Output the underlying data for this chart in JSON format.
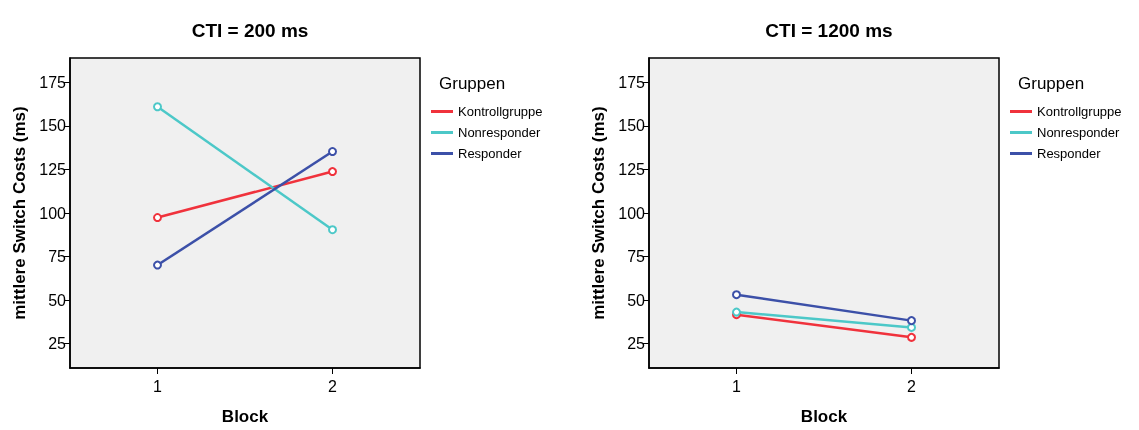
{
  "chart_data": [
    {
      "type": "line",
      "title": "CTI = 200 ms",
      "xlabel": "Block",
      "ylabel": "mittlere Switch Costs (ms)",
      "legend_title": "Gruppen",
      "legend": "right",
      "marker": "circle",
      "categories": [
        "1",
        "2"
      ],
      "ylim": [
        11,
        189
      ],
      "yticks": [
        25,
        50,
        75,
        100,
        125,
        150,
        175
      ],
      "series": [
        {
          "name": "Kontrollgruppe",
          "color": "#f0323c",
          "values": [
            97.4,
            123.8
          ]
        },
        {
          "name": "Nonresponder",
          "color": "#4cc8c8",
          "values": [
            161,
            90.4
          ]
        },
        {
          "name": "Responder",
          "color": "#3c50a8",
          "values": [
            70.1,
            135.3
          ]
        }
      ]
    },
    {
      "type": "line",
      "title": "CTI = 1200 ms",
      "xlabel": "Block",
      "ylabel": "mittlere Switch Costs (ms)",
      "legend_title": "Gruppen",
      "legend": "right",
      "marker": "circle",
      "categories": [
        "1",
        "2"
      ],
      "ylim": [
        11,
        189
      ],
      "yticks": [
        25,
        50,
        75,
        100,
        125,
        150,
        175
      ],
      "series": [
        {
          "name": "Kontrollgruppe",
          "color": "#f0323c",
          "values": [
            41.6,
            28.6
          ]
        },
        {
          "name": "Nonresponder",
          "color": "#4cc8c8",
          "values": [
            43.1,
            34.3
          ]
        },
        {
          "name": "Responder",
          "color": "#3c50a8",
          "values": [
            53.1,
            38.2
          ]
        }
      ]
    }
  ]
}
